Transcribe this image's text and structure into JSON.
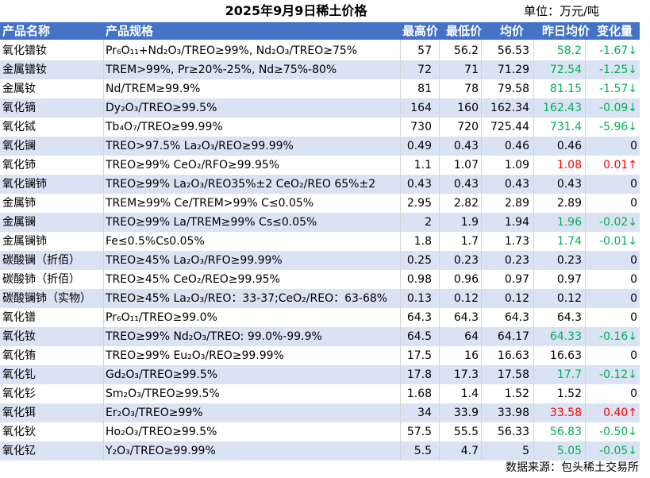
{
  "title": "2025年9月9日稀土价格",
  "unit": "单位：万元/吨",
  "headers": {
    "name": "产品名称",
    "spec": "产品规格",
    "high": "最高价",
    "low": "最低价",
    "avg": "均价",
    "prev": "昨日均价",
    "chg": "变化量"
  },
  "colors": {
    "up": "#ff0000",
    "down": "#00b050",
    "header_bg": "#4472c4",
    "band": "#dae3f3"
  },
  "rows": [
    {
      "name": "氧化镨钕",
      "spec": "Pr₆O₁₁+Nd₂O₃/TREO≥99%, Nd₂O₃/TREO≥75%",
      "high": "57",
      "low": "56.2",
      "avg": "56.53",
      "prev": "58.2",
      "chg": "-1.67",
      "trend": "down",
      "arrow": "↓"
    },
    {
      "name": "金属镨钕",
      "spec": "TREM>99%, Pr≥20%-25%, Nd≥75%-80%",
      "high": "72",
      "low": "71",
      "avg": "71.29",
      "prev": "72.54",
      "chg": "-1.25",
      "trend": "down",
      "arrow": "↓"
    },
    {
      "name": "金属钕",
      "spec": "Nd/TREM≥99.9%",
      "high": "81",
      "low": "78",
      "avg": "79.58",
      "prev": "81.15",
      "chg": "-1.57",
      "trend": "down",
      "arrow": "↓"
    },
    {
      "name": "氧化镝",
      "spec": "Dy₂O₃/TREO≥99.5%",
      "high": "164",
      "low": "160",
      "avg": "162.34",
      "prev": "162.43",
      "chg": "-0.09",
      "trend": "down",
      "arrow": "↓"
    },
    {
      "name": "氧化铽",
      "spec": "Tb₄O₇/TREO≥99.99%",
      "high": "730",
      "low": "720",
      "avg": "725.44",
      "prev": "731.4",
      "chg": "-5.96",
      "trend": "down",
      "arrow": "↓"
    },
    {
      "name": "氧化镧",
      "spec": "TREO>97.5% La₂O₃/REO≥99.99%",
      "high": "0.49",
      "low": "0.43",
      "avg": "0.46",
      "prev": "0.46",
      "chg": "0",
      "trend": "flat",
      "arrow": ""
    },
    {
      "name": "氧化铈",
      "spec": "TREO≥99% CeO₂/RFO≥99.95%",
      "high": "1.1",
      "low": "1.07",
      "avg": "1.09",
      "prev": "1.08",
      "chg": "0.01",
      "trend": "up",
      "arrow": "↑"
    },
    {
      "name": "氧化镧铈",
      "spec": "TREO≥99% La₂O₃/REO35%±2 CeO₂/REO 65%±2",
      "high": "0.43",
      "low": "0.43",
      "avg": "0.43",
      "prev": "0.43",
      "chg": "0",
      "trend": "flat",
      "arrow": ""
    },
    {
      "name": "金属铈",
      "spec": "TREM≥99% Ce/TREM>99% C≤0.05%",
      "high": "2.95",
      "low": "2.82",
      "avg": "2.89",
      "prev": "2.89",
      "chg": "0",
      "trend": "flat",
      "arrow": ""
    },
    {
      "name": "金属镧",
      "spec": "TREO≥99% La/TREM≥99% Cs≤0.05%",
      "high": "2",
      "low": "1.9",
      "avg": "1.94",
      "prev": "1.96",
      "chg": "-0.02",
      "trend": "down",
      "arrow": "↓"
    },
    {
      "name": "金属镧铈",
      "spec": "Fe≤0.5%Cs0.05%",
      "high": "1.8",
      "low": "1.7",
      "avg": "1.73",
      "prev": "1.74",
      "chg": "-0.01",
      "trend": "down",
      "arrow": "↓"
    },
    {
      "name": "碳酸镧（折佰）",
      "spec": "TREO≥45% La₂O₃/RFO≥99.99%",
      "high": "0.25",
      "low": "0.23",
      "avg": "0.23",
      "prev": "0.23",
      "chg": "0",
      "trend": "flat",
      "arrow": ""
    },
    {
      "name": "碳酸铈（折佰）",
      "spec": "TREO≥45% CeO₂/REO≥99.95%",
      "high": "0.98",
      "low": "0.96",
      "avg": "0.97",
      "prev": "0.97",
      "chg": "0",
      "trend": "flat",
      "arrow": ""
    },
    {
      "name": "碳酸镧铈（实物）",
      "spec": "TREO≥45% La₂O₃/REO：33-37;CeO₂/REO：63-68%",
      "high": "0.13",
      "low": "0.12",
      "avg": "0.12",
      "prev": "0.12",
      "chg": "0",
      "trend": "flat",
      "arrow": ""
    },
    {
      "name": "氧化镨",
      "spec": "Pr₆O₁₁/TREO≥99.0%",
      "high": "64.3",
      "low": "64.3",
      "avg": "64.3",
      "prev": "64.3",
      "chg": "0",
      "trend": "flat",
      "arrow": ""
    },
    {
      "name": "氧化钕",
      "spec": "TREO≥99% Nd₂O₃/TREO: 99.0%-99.9%",
      "high": "64.5",
      "low": "64",
      "avg": "64.17",
      "prev": "64.33",
      "chg": "-0.16",
      "trend": "down",
      "arrow": "↓"
    },
    {
      "name": "氧化铕",
      "spec": "TREO≥99% Eu₂O₃/REO≥99.99%",
      "high": "17.5",
      "low": "16",
      "avg": "16.63",
      "prev": "16.63",
      "chg": "0",
      "trend": "flat",
      "arrow": ""
    },
    {
      "name": "氧化钆",
      "spec": "Gd₂O₃/TREO≥99.5%",
      "high": "17.8",
      "low": "17.3",
      "avg": "17.58",
      "prev": "17.7",
      "chg": "-0.12",
      "trend": "down",
      "arrow": "↓"
    },
    {
      "name": "氧化钐",
      "spec": "Sm₂O₃/TREO≥99.5%",
      "high": "1.68",
      "low": "1.4",
      "avg": "1.52",
      "prev": "1.52",
      "chg": "0",
      "trend": "flat",
      "arrow": ""
    },
    {
      "name": "氧化铒",
      "spec": "Er₂O₃/TREO≥99%",
      "high": "34",
      "low": "33.9",
      "avg": "33.98",
      "prev": "33.58",
      "chg": "0.40",
      "trend": "up",
      "arrow": "↑"
    },
    {
      "name": "氧化钬",
      "spec": "Ho₂O₃/TREO≥99.5%",
      "high": "57.5",
      "low": "55.5",
      "avg": "56.33",
      "prev": "56.83",
      "chg": "-0.50",
      "trend": "down",
      "arrow": "↓"
    },
    {
      "name": "氧化钇",
      "spec": "Y₂O₃/TREO≥99.99%",
      "high": "5.5",
      "low": "4.7",
      "avg": "5",
      "prev": "5.05",
      "chg": "-0.05",
      "trend": "down",
      "arrow": "↓"
    }
  ],
  "source": "数据来源：包头稀土交易所"
}
